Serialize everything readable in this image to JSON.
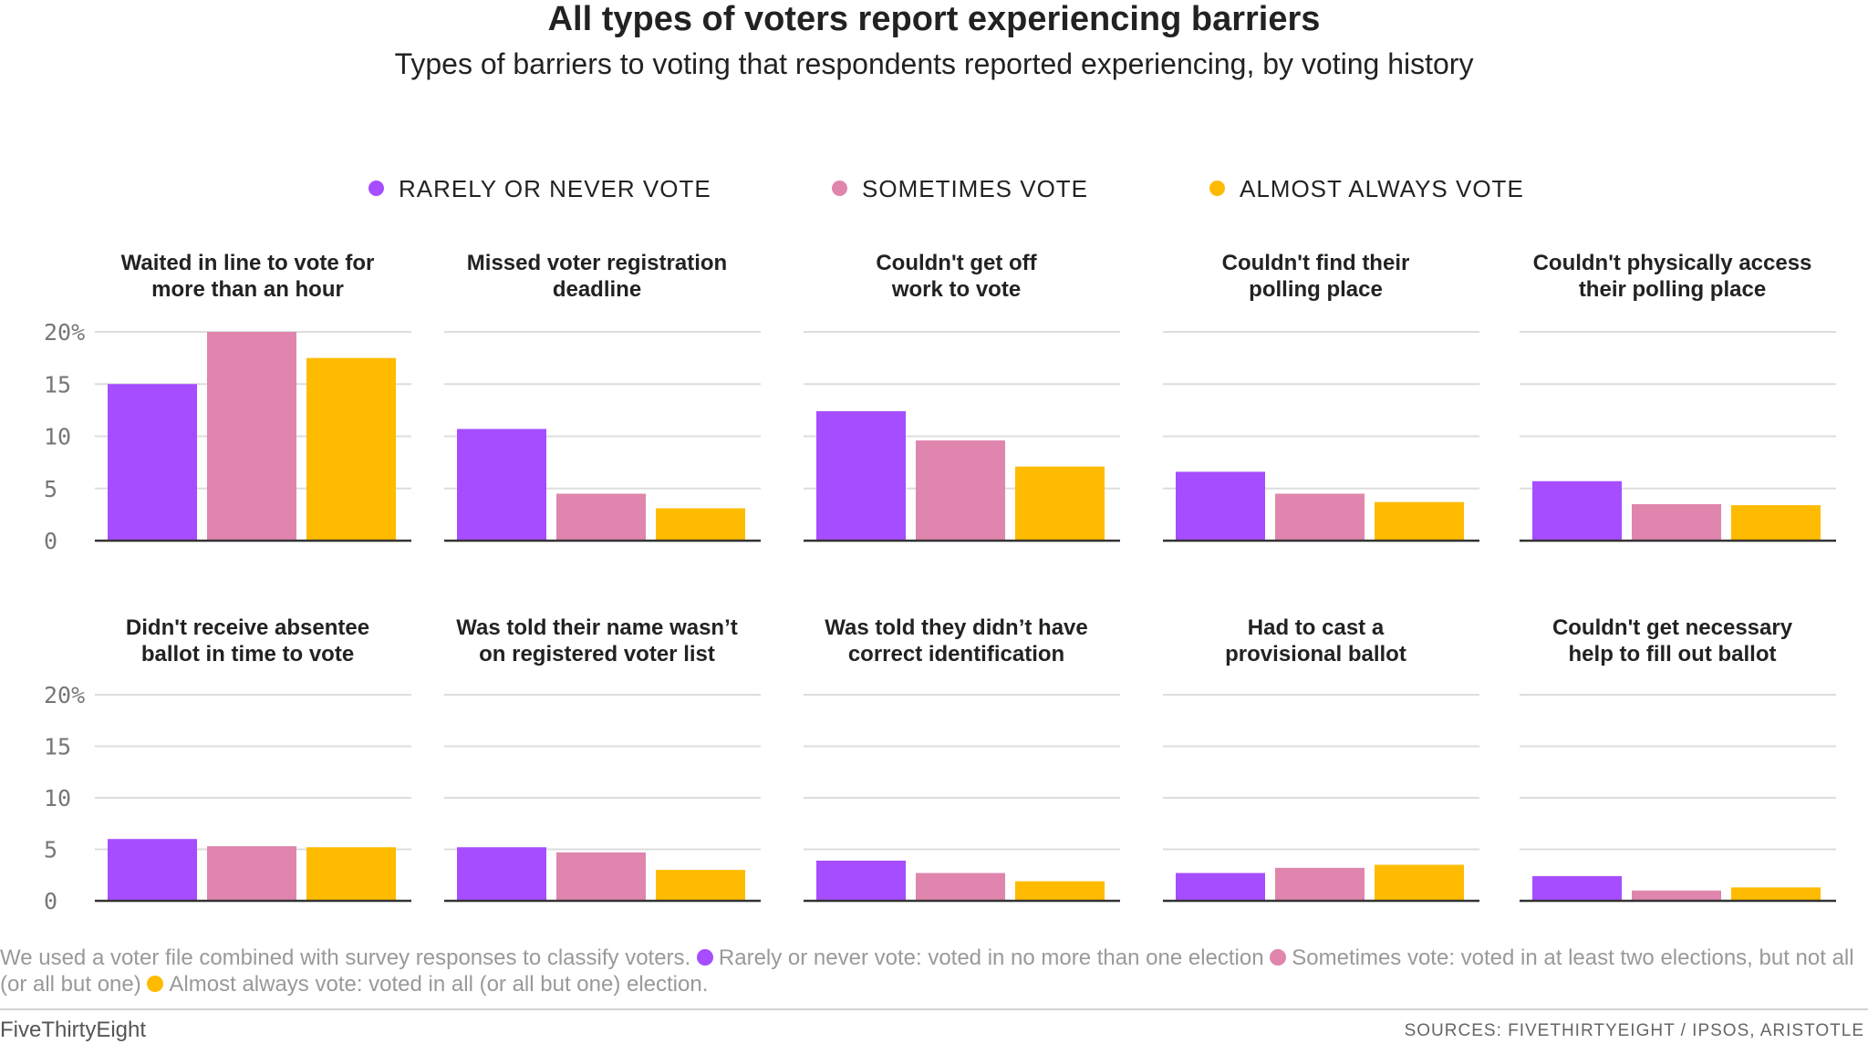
{
  "title": "All types of voters report experiencing barriers",
  "subtitle": "Types of barriers to voting that respondents reported experiencing, by voting history",
  "colors": {
    "rarely": "#a64dff",
    "sometimes": "#e085ad",
    "almost": "#ffbb00"
  },
  "legend": {
    "rarely": "RARELY OR NEVER VOTE",
    "sometimes": "SOMETIMES VOTE",
    "almost": "ALMOST ALWAYS VOTE"
  },
  "note": {
    "intro": "We used a voter file combined with survey responses to classify voters.",
    "rarely": "Rarely or never vote: voted in no more than one election",
    "sometimes": "Sometimes vote: voted in at least two elections, but not all (or all but one)",
    "almost": "Almost always vote: voted in all (or all but one) election."
  },
  "footer": {
    "brand": "FiveThirtyEight",
    "sources": "SOURCES: FIVETHIRTYEIGHT / IPSOS, ARISTOTLE"
  },
  "chart_data": [
    {
      "type": "bar",
      "title_lines": [
        "Waited in line to vote for",
        "more than an hour"
      ],
      "series": [
        {
          "name": "Rarely or never vote",
          "value": 15
        },
        {
          "name": "Sometimes vote",
          "value": 20
        },
        {
          "name": "Almost always vote",
          "value": 17.5
        }
      ],
      "ylim": [
        0,
        20
      ],
      "yticks": [
        "20%",
        "15",
        "10",
        "5",
        "0"
      ]
    },
    {
      "type": "bar",
      "title_lines": [
        "Missed voter registration",
        "deadline"
      ],
      "series": [
        {
          "name": "Rarely or never vote",
          "value": 10.7
        },
        {
          "name": "Sometimes vote",
          "value": 4.5
        },
        {
          "name": "Almost always vote",
          "value": 3.1
        }
      ],
      "ylim": [
        0,
        20
      ]
    },
    {
      "type": "bar",
      "title_lines": [
        "Couldn't get off",
        "work to vote"
      ],
      "series": [
        {
          "name": "Rarely or never vote",
          "value": 12.4
        },
        {
          "name": "Sometimes vote",
          "value": 9.6
        },
        {
          "name": "Almost always vote",
          "value": 7.1
        }
      ],
      "ylim": [
        0,
        20
      ]
    },
    {
      "type": "bar",
      "title_lines": [
        "Couldn't find their",
        "polling place"
      ],
      "series": [
        {
          "name": "Rarely or never vote",
          "value": 6.6
        },
        {
          "name": "Sometimes vote",
          "value": 4.5
        },
        {
          "name": "Almost always vote",
          "value": 3.7
        }
      ],
      "ylim": [
        0,
        20
      ]
    },
    {
      "type": "bar",
      "title_lines": [
        "Couldn't physically access",
        "their polling place"
      ],
      "series": [
        {
          "name": "Rarely or never vote",
          "value": 5.7
        },
        {
          "name": "Sometimes vote",
          "value": 3.5
        },
        {
          "name": "Almost always vote",
          "value": 3.4
        }
      ],
      "ylim": [
        0,
        20
      ]
    },
    {
      "type": "bar",
      "title_lines": [
        "Didn't receive absentee",
        "ballot in time to vote"
      ],
      "series": [
        {
          "name": "Rarely or never vote",
          "value": 6.0
        },
        {
          "name": "Sometimes vote",
          "value": 5.3
        },
        {
          "name": "Almost always vote",
          "value": 5.2
        }
      ],
      "ylim": [
        0,
        20
      ],
      "yticks": [
        "20%",
        "15",
        "10",
        "5",
        "0"
      ]
    },
    {
      "type": "bar",
      "title_lines": [
        "Was told their name wasn’t",
        "on registered voter list"
      ],
      "series": [
        {
          "name": "Rarely or never vote",
          "value": 5.2
        },
        {
          "name": "Sometimes vote",
          "value": 4.7
        },
        {
          "name": "Almost always vote",
          "value": 3.0
        }
      ],
      "ylim": [
        0,
        20
      ]
    },
    {
      "type": "bar",
      "title_lines": [
        "Was told they didn’t have",
        "correct identification"
      ],
      "series": [
        {
          "name": "Rarely or never vote",
          "value": 3.9
        },
        {
          "name": "Sometimes vote",
          "value": 2.7
        },
        {
          "name": "Almost always vote",
          "value": 1.9
        }
      ],
      "ylim": [
        0,
        20
      ]
    },
    {
      "type": "bar",
      "title_lines": [
        "Had to cast a",
        "provisional ballot"
      ],
      "series": [
        {
          "name": "Rarely or never vote",
          "value": 2.7
        },
        {
          "name": "Sometimes vote",
          "value": 3.2
        },
        {
          "name": "Almost always vote",
          "value": 3.5
        }
      ],
      "ylim": [
        0,
        20
      ]
    },
    {
      "type": "bar",
      "title_lines": [
        "Couldn't get necessary",
        "help to fill out ballot"
      ],
      "series": [
        {
          "name": "Rarely or never vote",
          "value": 2.4
        },
        {
          "name": "Sometimes vote",
          "value": 1.0
        },
        {
          "name": "Almost always vote",
          "value": 1.3
        }
      ],
      "ylim": [
        0,
        20
      ]
    }
  ]
}
